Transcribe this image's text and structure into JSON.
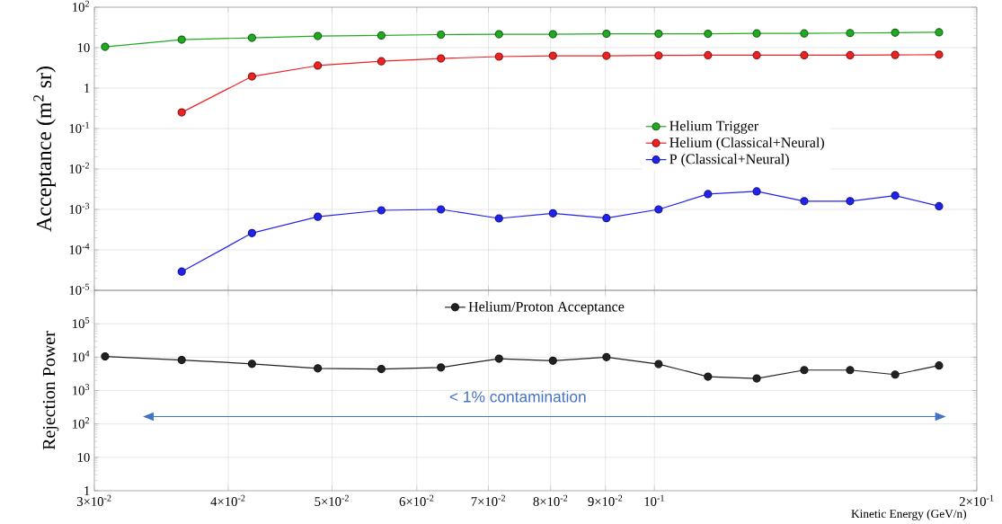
{
  "chart_data": [
    {
      "type": "line",
      "ylabel": "Acceptance (m$^{2}$ sr)",
      "log": "xy",
      "grid": true,
      "legend": "right",
      "marker": "circle",
      "line_style": "solid",
      "tick_labels": "y",
      "x": [
        0.0307,
        0.0362,
        0.0421,
        0.0485,
        0.0556,
        0.0632,
        0.0716,
        0.0804,
        0.0902,
        0.1009,
        0.1122,
        0.1246,
        0.138,
        0.1523,
        0.1678,
        0.1844
      ],
      "xlim": [
        0.03,
        0.2
      ],
      "xticks": [
        0.03,
        0.04,
        0.05,
        0.06,
        0.07,
        0.08,
        0.09,
        0.1,
        0.2
      ],
      "ylim": [
        1e-05,
        100
      ],
      "yticks": [
        {
          "value": 1e-05,
          "label": "10$^{-5}$"
        },
        {
          "value": 0.0001,
          "label": "10$^{-4}$"
        },
        {
          "value": 0.001,
          "label": "10$^{-3}$"
        },
        {
          "value": 0.01,
          "label": "10$^{-2}$"
        },
        {
          "value": 0.1,
          "label": "10$^{-1}$"
        },
        1,
        10,
        {
          "value": 100,
          "label": "10$^{2}$"
        }
      ],
      "series": [
        {
          "name": "Helium Trigger",
          "color": "#22aa22",
          "values": [
            10.5,
            15.8,
            17.5,
            19.4,
            20,
            21,
            21.5,
            21.5,
            22,
            22,
            22,
            22.5,
            22.5,
            23,
            23.5,
            24
          ]
        },
        {
          "name": "Helium  (Classical+Neural)",
          "color": "#ee2222",
          "values": [
            null,
            0.25,
            1.94,
            3.6,
            4.6,
            5.4,
            6.0,
            6.3,
            6.3,
            6.4,
            6.5,
            6.5,
            6.5,
            6.5,
            6.6,
            6.7
          ]
        },
        {
          "name": "P  (Classical+Neural)",
          "color": "#2222ee",
          "values": [
            null,
            2.9e-05,
            0.00026,
            0.00066,
            0.00095,
            0.001,
            0.0006,
            0.0008,
            0.00061,
            0.001,
            0.0024,
            0.0028,
            0.0016,
            0.0016,
            0.0022,
            0.0012
          ]
        }
      ]
    },
    {
      "type": "line",
      "ylabel": "Rejection Power",
      "xlabel": "Kinetic Energy (GeV/n)",
      "log": "xy",
      "grid": true,
      "legend": "top",
      "marker": "circle",
      "line_style": "solid",
      "annotations": [
        "< 1% contamination"
      ],
      "x": [
        0.0307,
        0.0362,
        0.0421,
        0.0485,
        0.0556,
        0.0632,
        0.0716,
        0.0804,
        0.0902,
        0.1009,
        0.1122,
        0.1246,
        0.138,
        0.1523,
        0.1678,
        0.1844
      ],
      "xlim": [
        0.03,
        0.2
      ],
      "xticks": [
        {
          "value": 0.03,
          "label": "3×10$^{-2}$"
        },
        {
          "value": 0.04,
          "label": "4×10$^{-2}$"
        },
        {
          "value": 0.05,
          "label": "5×10$^{-2}$"
        },
        {
          "value": 0.06,
          "label": "6×10$^{-2}$"
        },
        {
          "value": 0.07,
          "label": "7×10$^{-2}$"
        },
        {
          "value": 0.08,
          "label": "8×10$^{-2}$"
        },
        {
          "value": 0.09,
          "label": "9×10$^{-2}$"
        },
        {
          "value": 0.1,
          "label": "10$^{-1}$"
        },
        {
          "value": 0.2,
          "label": "2×10$^{-1}$"
        }
      ],
      "ylim": [
        1,
        1000000
      ],
      "yticks": [
        1,
        10,
        {
          "value": 100,
          "label": "10$^{2}$"
        },
        {
          "value": 1000,
          "label": "10$^{3}$"
        },
        {
          "value": 10000,
          "label": "10$^{4}$"
        },
        {
          "value": 100000,
          "label": "10$^{5}$"
        }
      ],
      "series": [
        {
          "name": "Helium/Proton Acceptance",
          "color": "#222222",
          "values": [
            10500,
            8200,
            6300,
            4600,
            4400,
            4900,
            9000,
            7800,
            10000,
            6200,
            2600,
            2300,
            4100,
            4100,
            3000,
            5600
          ]
        }
      ]
    }
  ]
}
